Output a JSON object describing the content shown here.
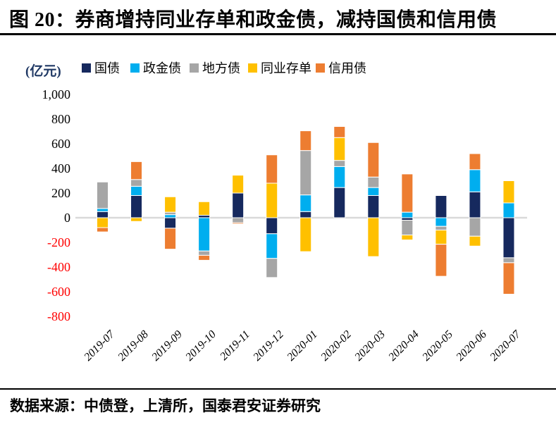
{
  "title": "图 20：券商增持同业存单和政金债，减持国债和信用债",
  "footer": {
    "source_label": "数据来源：中债登，上清所，国泰君安证券研究"
  },
  "chart_data": {
    "type": "bar",
    "stacked": true,
    "title": "图 20：券商增持同业存单和政金债，减持国债和信用债",
    "unit_label": "(亿元)",
    "xlabel": "",
    "ylabel": "(亿元)",
    "categories": [
      "2019-07",
      "2019-08",
      "2019-09",
      "2019-10",
      "2019-11",
      "2019-12",
      "2020-01",
      "2020-02",
      "2020-03",
      "2020-04",
      "2020-05",
      "2020-06",
      "2020-07"
    ],
    "series": [
      {
        "name": "国债",
        "color": "#16295E",
        "values": [
          50,
          180,
          -85,
          20,
          200,
          -130,
          50,
          245,
          180,
          -20,
          180,
          210,
          -325
        ]
      },
      {
        "name": "政金债",
        "color": "#00AEEF",
        "values": [
          25,
          75,
          25,
          -270,
          0,
          -200,
          135,
          170,
          65,
          45,
          -70,
          180,
          120
        ]
      },
      {
        "name": "地方债",
        "color": "#A6A6A6",
        "values": [
          215,
          55,
          20,
          -35,
          -40,
          -155,
          360,
          50,
          85,
          -120,
          -30,
          -150,
          -40
        ]
      },
      {
        "name": "同业存单",
        "color": "#FFC000",
        "values": [
          -80,
          -30,
          125,
          110,
          145,
          280,
          -275,
          185,
          -315,
          -40,
          -115,
          -80,
          180
        ]
      },
      {
        "name": "信用债",
        "color": "#ED7D31",
        "values": [
          -35,
          145,
          -170,
          -40,
          -10,
          230,
          160,
          90,
          280,
          310,
          -260,
          130,
          -255
        ]
      }
    ],
    "ylim": [
      -800,
      1000
    ],
    "ytick_step": 200,
    "ytick_labels": [
      "1,000",
      "800",
      "600",
      "400",
      "200",
      "0",
      "-200",
      "-400",
      "-600",
      "-800"
    ],
    "negative_tick_color": "#FF0000",
    "zero_line_color": "#D9D9D9",
    "legend_position": "top",
    "grid": false
  }
}
